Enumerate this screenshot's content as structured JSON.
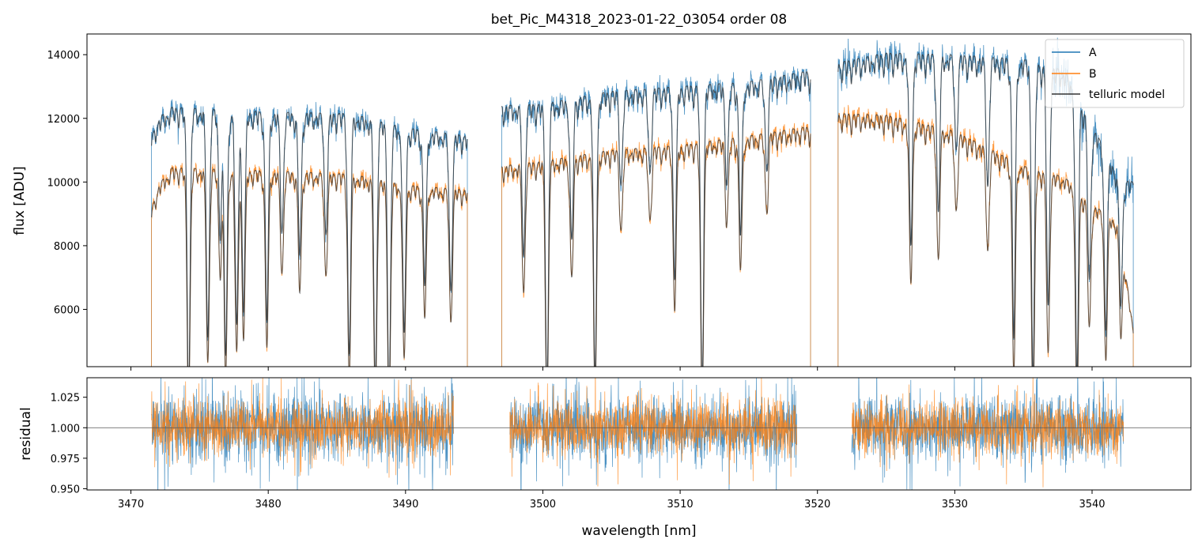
{
  "chart_data": [
    {
      "type": "line",
      "panel": "top",
      "title": "bet_Pic_M4318_2023-01-22_03054  order 08",
      "xlabel": "",
      "ylabel": "flux [ADU]",
      "xlim": [
        3466.8,
        3547.2
      ],
      "ylim": [
        4200,
        14650
      ],
      "yticks": [
        6000,
        8000,
        10000,
        12000,
        14000
      ],
      "xticks": [
        3470,
        3480,
        3490,
        3500,
        3510,
        3520,
        3530,
        3540
      ],
      "grid": false,
      "legend_position": "top-right",
      "segments": [
        {
          "xmin": 3471.5,
          "xmax": 3494.5,
          "A_base": [
            [
              3471.5,
              11400
            ],
            [
              3472.0,
              12000
            ],
            [
              3473.0,
              12350
            ],
            [
              3480.0,
              12200
            ],
            [
              3486.0,
              12150
            ],
            [
              3490.0,
              11700
            ],
            [
              3494.5,
              11450
            ]
          ],
          "B_base": [
            [
              3471.5,
              9100
            ],
            [
              3472.0,
              9900
            ],
            [
              3473.0,
              10450
            ],
            [
              3480.0,
              10350
            ],
            [
              3486.0,
              10250
            ],
            [
              3490.0,
              9900
            ],
            [
              3494.5,
              9750
            ]
          ]
        },
        {
          "xmin": 3497.0,
          "xmax": 3519.5,
          "A_base": [
            [
              3497.0,
              12400
            ],
            [
              3500.0,
              12450
            ],
            [
              3505.0,
              12850
            ],
            [
              3510.0,
              13000
            ],
            [
              3515.0,
              13150
            ],
            [
              3519.5,
              13500
            ]
          ],
          "B_base": [
            [
              3497.0,
              10500
            ],
            [
              3500.0,
              10650
            ],
            [
              3505.0,
              11000
            ],
            [
              3510.0,
              11150
            ],
            [
              3515.0,
              11450
            ],
            [
              3519.5,
              11750
            ]
          ]
        },
        {
          "xmin": 3521.5,
          "xmax": 3543.0,
          "A_base": [
            [
              3521.5,
              13750
            ],
            [
              3525.0,
              14050
            ],
            [
              3530.0,
              14000
            ],
            [
              3535.0,
              13850
            ],
            [
              3538.0,
              13500
            ],
            [
              3540.0,
              11800
            ],
            [
              3542.0,
              10100
            ],
            [
              3543.0,
              10000
            ]
          ],
          "B_base": [
            [
              3521.5,
              12150
            ],
            [
              3525.0,
              12100
            ],
            [
              3530.0,
              11600
            ],
            [
              3535.0,
              10500
            ],
            [
              3538.0,
              10150
            ],
            [
              3540.0,
              9300
            ],
            [
              3542.0,
              8700
            ],
            [
              3543.0,
              5300
            ]
          ]
        }
      ],
      "absorption_lines": [
        [
          3474.2,
          0.72
        ],
        [
          3475.6,
          0.58
        ],
        [
          3476.5,
          0.3
        ],
        [
          3476.9,
          0.62
        ],
        [
          3477.7,
          0.55
        ],
        [
          3478.2,
          0.5
        ],
        [
          3479.9,
          0.52
        ],
        [
          3481.0,
          0.3
        ],
        [
          3482.3,
          0.35
        ],
        [
          3484.2,
          0.3
        ],
        [
          3485.9,
          0.62
        ],
        [
          3487.8,
          0.7
        ],
        [
          3488.8,
          0.72
        ],
        [
          3489.9,
          0.55
        ],
        [
          3491.4,
          0.4
        ],
        [
          3493.3,
          0.42
        ],
        [
          3498.6,
          0.38
        ],
        [
          3500.3,
          0.72
        ],
        [
          3502.1,
          0.35
        ],
        [
          3503.8,
          0.7
        ],
        [
          3505.7,
          0.22
        ],
        [
          3507.8,
          0.2
        ],
        [
          3509.6,
          0.45
        ],
        [
          3511.6,
          0.72
        ],
        [
          3513.4,
          0.22
        ],
        [
          3514.4,
          0.35
        ],
        [
          3516.3,
          0.2
        ],
        [
          3526.8,
          0.42
        ],
        [
          3528.8,
          0.35
        ],
        [
          3530.1,
          0.2
        ],
        [
          3532.4,
          0.28
        ],
        [
          3534.3,
          0.62
        ],
        [
          3535.7,
          0.72
        ],
        [
          3536.8,
          0.55
        ],
        [
          3538.9,
          0.7
        ],
        [
          3539.8,
          0.42
        ],
        [
          3541.0,
          0.5
        ],
        [
          3542.1,
          0.38
        ]
      ],
      "series": [
        {
          "name": "A",
          "color": "#1f77b4"
        },
        {
          "name": "B",
          "color": "#ff7f0e"
        },
        {
          "name": "telluric model",
          "color": "#333333"
        }
      ]
    },
    {
      "type": "line",
      "panel": "bottom",
      "title": "",
      "xlabel": "wavelength [nm]",
      "ylabel": "residual",
      "xlim": [
        3466.8,
        3547.2
      ],
      "ylim": [
        0.949,
        1.041
      ],
      "yticks": [
        0.95,
        0.975,
        1.0,
        1.025
      ],
      "ytick_labels": [
        "0.950",
        "0.975",
        "1.000",
        "1.025"
      ],
      "xticks": [
        3470,
        3480,
        3490,
        3500,
        3510,
        3520,
        3530,
        3540
      ],
      "reference_line": 1.0,
      "segments": [
        {
          "xmin": 3471.5,
          "xmax": 3493.5
        },
        {
          "xmin": 3497.6,
          "xmax": 3518.5
        },
        {
          "xmin": 3522.5,
          "xmax": 3542.3
        }
      ],
      "series": [
        {
          "name": "A",
          "color": "#1f77b4",
          "noise_std": 0.014
        },
        {
          "name": "B",
          "color": "#ff7f0e",
          "noise_std": 0.011
        }
      ]
    }
  ],
  "labels": {
    "title": "bet_Pic_M4318_2023-01-22_03054  order 08",
    "top_ylabel": "flux [ADU]",
    "bottom_ylabel": "residual",
    "xlabel": "wavelength [nm]",
    "legend": [
      "A",
      "B",
      "telluric model"
    ]
  }
}
